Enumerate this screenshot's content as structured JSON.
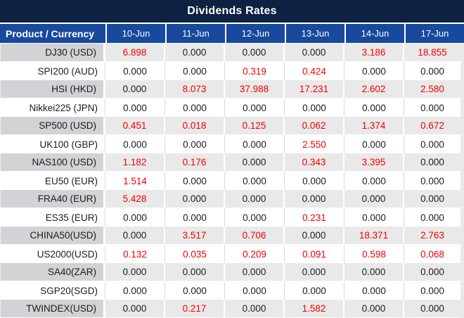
{
  "title": "Dividends Rates",
  "table": {
    "product_header": "Product / Currency",
    "date_columns": [
      "10-Jun",
      "11-Jun",
      "12-Jun",
      "13-Jun",
      "14-Jun",
      "17-Jun"
    ],
    "rows": [
      {
        "product": "DJ30 (USD)",
        "values": [
          "6.898",
          "0.000",
          "0.000",
          "0.000",
          "3.186",
          "18.855"
        ]
      },
      {
        "product": "SPI200 (AUD)",
        "values": [
          "0.000",
          "0.000",
          "0.319",
          "0.424",
          "0.000",
          "0.000"
        ]
      },
      {
        "product": "HSI (HKD)",
        "values": [
          "0.000",
          "8.073",
          "37.988",
          "17.231",
          "2.602",
          "2.580"
        ]
      },
      {
        "product": "Nikkei225 (JPN)",
        "values": [
          "0.000",
          "0.000",
          "0.000",
          "0.000",
          "0.000",
          "0.000"
        ]
      },
      {
        "product": "SP500 (USD)",
        "values": [
          "0.451",
          "0.018",
          "0.125",
          "0.062",
          "1.374",
          "0.672"
        ]
      },
      {
        "product": "UK100 (GBP)",
        "values": [
          "0.000",
          "0.000",
          "0.000",
          "2.550",
          "0.000",
          "0.000"
        ]
      },
      {
        "product": "NAS100 (USD)",
        "values": [
          "1.182",
          "0.176",
          "0.000",
          "0.343",
          "3.395",
          "0.000"
        ]
      },
      {
        "product": "EU50 (EUR)",
        "values": [
          "1.514",
          "0.000",
          "0.000",
          "0.000",
          "0.000",
          "0.000"
        ]
      },
      {
        "product": "FRA40 (EUR)",
        "values": [
          "5.428",
          "0.000",
          "0.000",
          "0.000",
          "0.000",
          "0.000"
        ]
      },
      {
        "product": "ES35 (EUR)",
        "values": [
          "0.000",
          "0.000",
          "0.000",
          "0.231",
          "0.000",
          "0.000"
        ]
      },
      {
        "product": "CHINA50(USD)",
        "values": [
          "0.000",
          "3.517",
          "0.706",
          "0.000",
          "18.371",
          "2.763"
        ]
      },
      {
        "product": "US2000(USD)",
        "values": [
          "0.132",
          "0.035",
          "0.209",
          "0.091",
          "0.598",
          "0.068"
        ]
      },
      {
        "product": "SA40(ZAR)",
        "values": [
          "0.000",
          "0.000",
          "0.000",
          "0.000",
          "0.000",
          "0.000"
        ]
      },
      {
        "product": "SGP20(SGD)",
        "values": [
          "0.000",
          "0.000",
          "0.000",
          "0.000",
          "0.000",
          "0.000"
        ]
      },
      {
        "product": "TWINDEX(USD)",
        "values": [
          "0.000",
          "0.217",
          "0.000",
          "1.582",
          "0.000",
          "0.000"
        ]
      }
    ]
  },
  "colors": {
    "title_bg": "#0e2142",
    "header_bg": "#17499c",
    "header_text": "#ffffff",
    "zero_value_text": "#1c1c1c",
    "nonzero_value_text": "#f20000",
    "stripe_row_bg": "#e9e9e9",
    "stripe_product_bg": "#d2d3d6",
    "white_row_bg": "#ffffff"
  }
}
